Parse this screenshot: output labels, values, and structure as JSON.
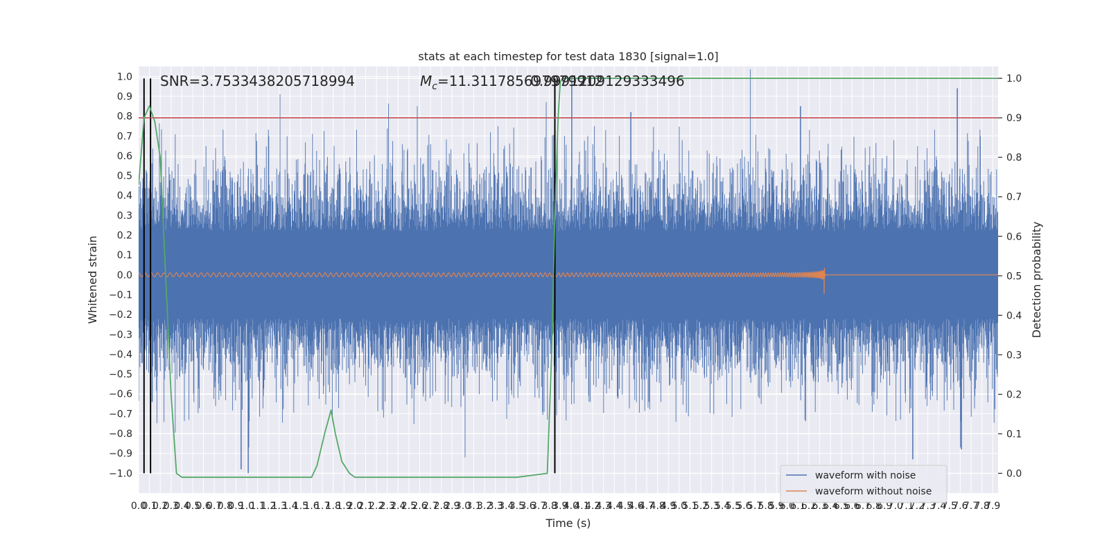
{
  "chart_data": {
    "type": "line",
    "title": "stats at each timestep for test data 1830 [signal=1.0]",
    "xlabel": "Time (s)",
    "ylabel": "Whitened strain",
    "y2label": "Detection probability",
    "xlim": [
      0.0,
      7.95
    ],
    "ylim": [
      -1.1,
      1.05
    ],
    "y2lim": [
      -0.05,
      1.03
    ],
    "x_ticks": [
      0.0,
      0.1,
      0.2,
      0.3,
      0.4,
      0.5,
      0.6,
      0.7,
      0.8,
      0.9,
      1.0,
      1.1,
      1.2,
      1.3,
      1.4,
      1.5,
      1.6,
      1.7,
      1.8,
      1.9,
      2.0,
      2.1,
      2.2,
      2.3,
      2.4,
      2.5,
      2.6,
      2.7,
      2.8,
      2.9,
      3.0,
      3.1,
      3.2,
      3.3,
      3.4,
      3.5,
      3.6,
      3.7,
      3.8,
      3.9,
      4.0,
      4.1,
      4.2,
      4.3,
      4.4,
      4.5,
      4.6,
      4.7,
      4.8,
      4.9,
      5.0,
      5.1,
      5.2,
      5.3,
      5.4,
      5.5,
      5.6,
      5.7,
      5.8,
      5.9,
      6.0,
      6.1,
      6.2,
      6.3,
      6.4,
      6.5,
      6.6,
      6.7,
      6.8,
      6.9,
      7.0,
      7.1,
      7.2,
      7.3,
      7.4,
      7.5,
      7.6,
      7.7,
      7.8,
      7.9
    ],
    "x_tick_labels": [
      "0.0",
      "0.1",
      "0.2",
      "0.3",
      "0.4",
      "0.5",
      "0.6",
      "0.7",
      "0.8",
      "0.9",
      "1.0",
      "1.1",
      "1.2",
      "1.3",
      "1.4",
      "1.5",
      "1.6",
      "1.7",
      "1.8",
      "1.9",
      "2.0",
      "2.1",
      "2.2",
      "2.3",
      "2.4",
      "2.5",
      "2.6",
      "2.7",
      "2.8",
      "2.9",
      "3.0",
      "3.1",
      "3.2",
      "3.3",
      "3.4",
      "3.5",
      "3.6",
      "3.7",
      "3.8",
      "3.9",
      "4.0",
      "4.1",
      "4.2",
      "4.3",
      "4.4",
      "4.5",
      "4.6",
      "4.7",
      "4.8",
      "4.9",
      "5.0",
      "5.1",
      "5.2",
      "5.3",
      "5.4",
      "5.5",
      "5.6",
      "5.7",
      "5.8",
      "5.9",
      "6.0",
      "6.1",
      "6.2",
      "6.3",
      "6.4",
      "6.5",
      "6.6",
      "6.7",
      "6.8",
      "6.9",
      "7.0",
      "7.1",
      "7.2",
      "7.3",
      "7.4",
      "7.5",
      "7.6",
      "7.7",
      "7.8",
      "7.9"
    ],
    "y_ticks": [
      -1.0,
      -0.9,
      -0.8,
      -0.7,
      -0.6,
      -0.5,
      -0.4,
      -0.3,
      -0.2,
      -0.1,
      0.0,
      0.1,
      0.2,
      0.3,
      0.4,
      0.5,
      0.6,
      0.7,
      0.8,
      0.9,
      1.0
    ],
    "y_tick_labels": [
      "−1.0",
      "−0.9",
      "−0.8",
      "−0.7",
      "−0.6",
      "−0.5",
      "−0.4",
      "−0.3",
      "−0.2",
      "−0.1",
      "0.0",
      "0.1",
      "0.2",
      "0.3",
      "0.4",
      "0.5",
      "0.6",
      "0.7",
      "0.8",
      "0.9",
      "1.0"
    ],
    "y2_ticks": [
      0.0,
      0.1,
      0.2,
      0.3,
      0.4,
      0.5,
      0.6,
      0.7,
      0.8,
      0.9,
      1.0
    ],
    "y2_tick_labels": [
      "0.0",
      "0.1",
      "0.2",
      "0.3",
      "0.4",
      "0.5",
      "0.6",
      "0.7",
      "0.8",
      "0.9",
      "1.0"
    ],
    "grid": true,
    "legend_position": "bottom-right",
    "legend": [
      {
        "label": "waveform with noise",
        "color": "#4c72b0"
      },
      {
        "label": "waveform without noise",
        "color": "#dd8452"
      }
    ],
    "annotations": {
      "snr_text": "SNR=3.7533438205718994",
      "mc_prefix": "M",
      "mc_sub": "c",
      "mc_value": "=11.311785697979912",
      "overlap_text": "0.9991209129333496"
    },
    "noise_waveform": {
      "name": "waveform with noise",
      "color": "#4c72b0",
      "x_range": [
        0.0,
        7.95
      ],
      "dense_band": [
        -0.25,
        0.25
      ],
      "typical_extremes": [
        -0.65,
        0.6
      ],
      "spikes": [
        {
          "x": 1.31,
          "y": 0.91
        },
        {
          "x": 2.58,
          "y": 0.85
        },
        {
          "x": 3.77,
          "y": 0.87
        },
        {
          "x": 4.01,
          "y": 1.0
        },
        {
          "x": 4.55,
          "y": 0.82
        },
        {
          "x": 6.12,
          "y": 0.85
        },
        {
          "x": 7.57,
          "y": 0.94
        },
        {
          "x": 0.95,
          "y": -0.98
        },
        {
          "x": 1.01,
          "y": -1.0
        },
        {
          "x": 3.02,
          "y": -0.92
        },
        {
          "x": 7.16,
          "y": -0.93
        },
        {
          "x": 7.61,
          "y": -0.88
        }
      ]
    },
    "clean_waveform": {
      "name": "waveform without noise",
      "color": "#dd8452",
      "x_range": [
        0.0,
        7.95
      ],
      "start_amplitude": 0.01,
      "peak_amplitude": 0.16,
      "merger_time": 6.34
    },
    "probability": {
      "axis": "right",
      "color": "#55a868",
      "x": [
        0.0,
        0.05,
        0.1,
        0.15,
        0.2,
        0.25,
        0.3,
        0.35,
        0.4,
        0.5,
        1.0,
        1.5,
        1.6,
        1.65,
        1.72,
        1.78,
        1.82,
        1.88,
        1.95,
        2.0,
        2.1,
        3.5,
        3.78,
        3.82,
        3.85,
        3.88,
        3.9,
        3.92,
        7.95
      ],
      "values": [
        0.73,
        0.9,
        0.93,
        0.89,
        0.8,
        0.5,
        0.2,
        0.0,
        -0.01,
        -0.01,
        -0.01,
        -0.01,
        -0.01,
        0.02,
        0.1,
        0.16,
        0.1,
        0.03,
        0.0,
        -0.01,
        -0.01,
        -0.01,
        0.0,
        0.3,
        0.65,
        0.9,
        0.99,
        1.0,
        1.0
      ]
    },
    "threshold": {
      "axis": "right",
      "value": 0.9,
      "color": "#c44e52"
    },
    "vlines": {
      "x": [
        0.05,
        0.11,
        3.85
      ],
      "color": "#000000",
      "ymin": -1.0,
      "ymax": 0.99
    }
  }
}
